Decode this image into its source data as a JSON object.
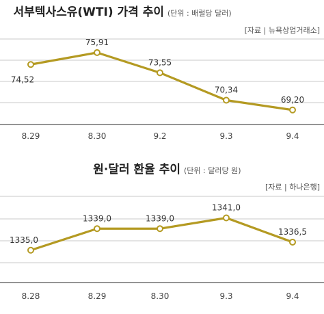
{
  "chart_data": [
    {
      "type": "line",
      "title": "서부텍사스유(WTI) 가격 추이",
      "subtitle": "(단위 : 배럴당 달러)",
      "source": "[자료 | 뉴욕상업거래소]",
      "categories": [
        "8.29",
        "8.30",
        "9.2",
        "9.3",
        "9.4"
      ],
      "values": [
        74.52,
        75.91,
        73.55,
        70.34,
        69.2
      ],
      "data_labels": [
        "74,52",
        "75,91",
        "73,55",
        "70,34",
        "69,20"
      ],
      "ylim": [
        67.5,
        77.5
      ],
      "grid": true,
      "color": "#b49a22"
    },
    {
      "type": "line",
      "title": "원·달러 환율 추이",
      "subtitle": "(단위 : 달러당 원)",
      "source": "[자료 | 하나은행]",
      "categories": [
        "8.28",
        "8.29",
        "8.30",
        "9.3",
        "9.4"
      ],
      "values": [
        1335.0,
        1339.0,
        1339.0,
        1341.0,
        1336.5
      ],
      "data_labels": [
        "1335,0",
        "1339,0",
        "1339,0",
        "1341,0",
        "1336,5"
      ],
      "ylim": [
        1329.0,
        1345.0
      ],
      "grid": true,
      "color": "#b49a22"
    }
  ]
}
